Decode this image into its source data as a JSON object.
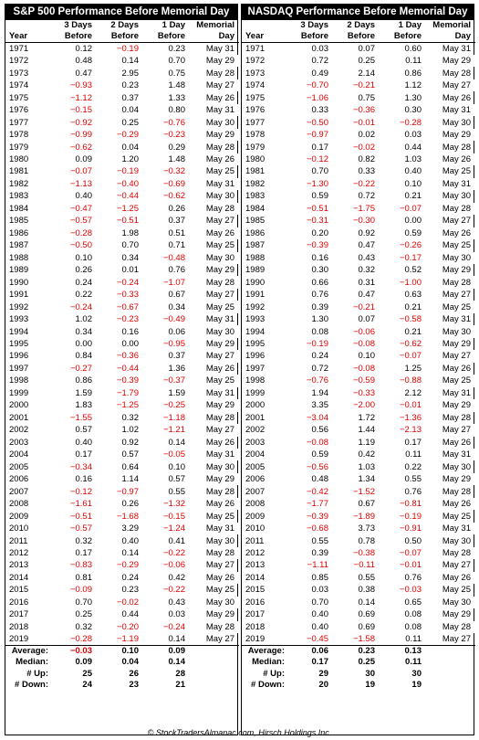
{
  "credit": "© StockTradersAlmanac.com, Hirsch Holdings Inc.",
  "colors": {
    "negative": "#e00000",
    "title_background": "#000000"
  },
  "tables": [
    {
      "title": "S&P 500 Performance Before Memorial Day",
      "headers": {
        "top": [
          "",
          "3 Days",
          "2 Days",
          "1 Day",
          "Memorial"
        ],
        "bottom": [
          "Year",
          "Before",
          "Before",
          "Before",
          "Day"
        ]
      },
      "rows": [
        [
          "1971",
          "0.12",
          "−0.19",
          "0.23",
          "May 31"
        ],
        [
          "1972",
          "0.48",
          "0.14",
          "0.70",
          "May 29"
        ],
        [
          "1973",
          "0.47",
          "2.95",
          "0.75",
          "May 28"
        ],
        [
          "1974",
          "−0.93",
          "0.23",
          "1.48",
          "May 27"
        ],
        [
          "1975",
          "−1.12",
          "0.37",
          "1.33",
          "May 26"
        ],
        [
          "1976",
          "−0.15",
          "0.04",
          "0.80",
          "May 31"
        ],
        [
          "1977",
          "−0.92",
          "0.25",
          "−0.76",
          "May 30"
        ],
        [
          "1978",
          "−0.99",
          "−0.29",
          "−0.23",
          "May 29"
        ],
        [
          "1979",
          "−0.62",
          "0.04",
          "0.29",
          "May 28"
        ],
        [
          "1980",
          "0.09",
          "1.20",
          "1.48",
          "May 26"
        ],
        [
          "1981",
          "−0.07",
          "−0.19",
          "−0.32",
          "May 25"
        ],
        [
          "1982",
          "−1.13",
          "−0.40",
          "−0.69",
          "May 31"
        ],
        [
          "1983",
          "0.40",
          "−0.44",
          "−0.62",
          "May 30"
        ],
        [
          "1984",
          "−0.47",
          "−1.25",
          "0.26",
          "May 28"
        ],
        [
          "1985",
          "−0.57",
          "−0.51",
          "0.37",
          "May 27"
        ],
        [
          "1986",
          "−0.28",
          "1.98",
          "0.51",
          "May 26"
        ],
        [
          "1987",
          "−0.50",
          "0.70",
          "0.71",
          "May 25"
        ],
        [
          "1988",
          "0.10",
          "0.34",
          "−0.48",
          "May 30"
        ],
        [
          "1989",
          "0.26",
          "0.01",
          "0.76",
          "May 29"
        ],
        [
          "1990",
          "0.24",
          "−0.24",
          "−1.07",
          "May 28"
        ],
        [
          "1991",
          "0.22",
          "−0.33",
          "0.67",
          "May 27"
        ],
        [
          "1992",
          "−0.24",
          "−0.67",
          "0.34",
          "May 25"
        ],
        [
          "1993",
          "1.02",
          "−0.23",
          "−0.49",
          "May 31"
        ],
        [
          "1994",
          "0.34",
          "0.16",
          "0.06",
          "May 30"
        ],
        [
          "1995",
          "0.00",
          "0.00",
          "−0.95",
          "May 29"
        ],
        [
          "1996",
          "0.84",
          "−0.36",
          "0.37",
          "May 27"
        ],
        [
          "1997",
          "−0.27",
          "−0.44",
          "1.36",
          "May 26"
        ],
        [
          "1998",
          "0.86",
          "−0.39",
          "−0.37",
          "May 25"
        ],
        [
          "1999",
          "1.59",
          "−1.79",
          "1.59",
          "May 31"
        ],
        [
          "2000",
          "1.83",
          "−1.25",
          "−0.25",
          "May 29"
        ],
        [
          "2001",
          "−1.55",
          "0.32",
          "−1.18",
          "May 28"
        ],
        [
          "2002",
          "0.57",
          "1.02",
          "−1.21",
          "May 27"
        ],
        [
          "2003",
          "0.40",
          "0.92",
          "0.14",
          "May 26"
        ],
        [
          "2004",
          "0.17",
          "0.57",
          "−0.05",
          "May 31"
        ],
        [
          "2005",
          "−0.34",
          "0.64",
          "0.10",
          "May 30"
        ],
        [
          "2006",
          "0.16",
          "1.14",
          "0.57",
          "May 29"
        ],
        [
          "2007",
          "−0.12",
          "−0.97",
          "0.55",
          "May 28"
        ],
        [
          "2008",
          "−1.61",
          "0.26",
          "−1.32",
          "May 26"
        ],
        [
          "2009",
          "−0.51",
          "−1.68",
          "−0.15",
          "May 25"
        ],
        [
          "2010",
          "−0.57",
          "3.29",
          "−1.24",
          "May 31"
        ],
        [
          "2011",
          "0.32",
          "0.40",
          "0.41",
          "May 30"
        ],
        [
          "2012",
          "0.17",
          "0.14",
          "−0.22",
          "May 28"
        ],
        [
          "2013",
          "−0.83",
          "−0.29",
          "−0.06",
          "May 27"
        ],
        [
          "2014",
          "0.81",
          "0.24",
          "0.42",
          "May 26"
        ],
        [
          "2015",
          "−0.09",
          "0.23",
          "−0.22",
          "May 25"
        ],
        [
          "2016",
          "0.70",
          "−0.02",
          "0.43",
          "May 30"
        ],
        [
          "2017",
          "0.25",
          "0.44",
          "0.03",
          "May 29"
        ],
        [
          "2018",
          "0.32",
          "−0.20",
          "−0.24",
          "May 28"
        ],
        [
          "2019",
          "−0.28",
          "−1.19",
          "0.14",
          "May 27"
        ]
      ],
      "summary": [
        {
          "label": "Average:",
          "values": [
            "−0.03",
            "0.10",
            "0.09"
          ]
        },
        {
          "label": "Median:",
          "values": [
            "0.09",
            "0.04",
            "0.14"
          ]
        },
        {
          "label": "# Up:",
          "values": [
            "25",
            "26",
            "28"
          ]
        },
        {
          "label": "# Down:",
          "values": [
            "24",
            "23",
            "21"
          ]
        }
      ]
    },
    {
      "title": "NASDAQ Performance Before Memorial Day",
      "headers": {
        "top": [
          "",
          "3 Days",
          "2 Days",
          "1 Day",
          "Memorial"
        ],
        "bottom": [
          "Year",
          "Before",
          "Before",
          "Before",
          "Day"
        ]
      },
      "rows": [
        [
          "1971",
          "0.03",
          "0.07",
          "0.60",
          "May 31"
        ],
        [
          "1972",
          "0.72",
          "0.25",
          "0.11",
          "May 29"
        ],
        [
          "1973",
          "0.49",
          "2.14",
          "0.86",
          "May 28"
        ],
        [
          "1974",
          "−0.70",
          "−0.21",
          "1.12",
          "May 27"
        ],
        [
          "1975",
          "−1.06",
          "0.75",
          "1.30",
          "May 26"
        ],
        [
          "1976",
          "0.33",
          "−0.36",
          "0.30",
          "May 31"
        ],
        [
          "1977",
          "−0.50",
          "−0.01",
          "−0.28",
          "May 30"
        ],
        [
          "1978",
          "−0.97",
          "0.02",
          "0.03",
          "May 29"
        ],
        [
          "1979",
          "0.17",
          "−0.02",
          "0.44",
          "May 28"
        ],
        [
          "1980",
          "−0.12",
          "0.82",
          "1.03",
          "May 26"
        ],
        [
          "1981",
          "0.70",
          "0.33",
          "0.40",
          "May 25"
        ],
        [
          "1982",
          "−1.30",
          "−0.22",
          "0.10",
          "May 31"
        ],
        [
          "1983",
          "0.59",
          "0.72",
          "0.21",
          "May 30"
        ],
        [
          "1984",
          "−0.51",
          "−1.75",
          "−0.07",
          "May 28"
        ],
        [
          "1985",
          "−0.31",
          "−0.30",
          "0.00",
          "May 27"
        ],
        [
          "1986",
          "0.20",
          "0.92",
          "0.59",
          "May 26"
        ],
        [
          "1987",
          "−0.39",
          "0.47",
          "−0.26",
          "May 25"
        ],
        [
          "1988",
          "0.16",
          "0.43",
          "−0.17",
          "May 30"
        ],
        [
          "1989",
          "0.30",
          "0.32",
          "0.52",
          "May 29"
        ],
        [
          "1990",
          "0.66",
          "0.31",
          "−1.00",
          "May 28"
        ],
        [
          "1991",
          "0.76",
          "0.47",
          "0.63",
          "May 27"
        ],
        [
          "1992",
          "0.39",
          "−0.21",
          "0.21",
          "May 25"
        ],
        [
          "1993",
          "1.30",
          "0.07",
          "−0.58",
          "May 31"
        ],
        [
          "1994",
          "0.08",
          "−0.06",
          "0.21",
          "May 30"
        ],
        [
          "1995",
          "−0.19",
          "−0.08",
          "−0.62",
          "May 29"
        ],
        [
          "1996",
          "0.24",
          "0.10",
          "−0.07",
          "May 27"
        ],
        [
          "1997",
          "0.72",
          "−0.08",
          "1.25",
          "May 26"
        ],
        [
          "1998",
          "−0.76",
          "−0.59",
          "−0.88",
          "May 25"
        ],
        [
          "1999",
          "1.94",
          "−0.33",
          "2.12",
          "May 31"
        ],
        [
          "2000",
          "3.35",
          "−2.00",
          "−0.01",
          "May 29"
        ],
        [
          "2001",
          "−3.04",
          "1.72",
          "−1.36",
          "May 28"
        ],
        [
          "2002",
          "0.56",
          "1.44",
          "−2.13",
          "May 27"
        ],
        [
          "2003",
          "−0.08",
          "1.19",
          "0.17",
          "May 26"
        ],
        [
          "2004",
          "0.59",
          "0.42",
          "0.11",
          "May 31"
        ],
        [
          "2005",
          "−0.56",
          "1.03",
          "0.22",
          "May 30"
        ],
        [
          "2006",
          "0.48",
          "1.34",
          "0.55",
          "May 29"
        ],
        [
          "2007",
          "−0.42",
          "−1.52",
          "0.76",
          "May 28"
        ],
        [
          "2008",
          "−1.77",
          "0.67",
          "−0.81",
          "May 26"
        ],
        [
          "2009",
          "−0.39",
          "−1.89",
          "−0.19",
          "May 25"
        ],
        [
          "2010",
          "−0.68",
          "3.73",
          "−0.91",
          "May 31"
        ],
        [
          "2011",
          "0.55",
          "0.78",
          "0.50",
          "May 30"
        ],
        [
          "2012",
          "0.39",
          "−0.38",
          "−0.07",
          "May 28"
        ],
        [
          "2013",
          "−1.11",
          "−0.11",
          "−0.01",
          "May 27"
        ],
        [
          "2014",
          "0.85",
          "0.55",
          "0.76",
          "May 26"
        ],
        [
          "2015",
          "0.03",
          "0.38",
          "−0.03",
          "May 25"
        ],
        [
          "2016",
          "0.70",
          "0.14",
          "0.65",
          "May 30"
        ],
        [
          "2017",
          "0.40",
          "0.69",
          "0.08",
          "May 29"
        ],
        [
          "2018",
          "0.40",
          "0.69",
          "0.08",
          "May 28"
        ],
        [
          "2019",
          "−0.45",
          "−1.58",
          "0.11",
          "May 27"
        ]
      ],
      "summary": [
        {
          "label": "Average:",
          "values": [
            "0.06",
            "0.23",
            "0.13"
          ]
        },
        {
          "label": "Median:",
          "values": [
            "0.17",
            "0.25",
            "0.11"
          ]
        },
        {
          "label": "# Up:",
          "values": [
            "29",
            "30",
            "30"
          ]
        },
        {
          "label": "# Down:",
          "values": [
            "20",
            "19",
            "19"
          ]
        }
      ]
    }
  ]
}
